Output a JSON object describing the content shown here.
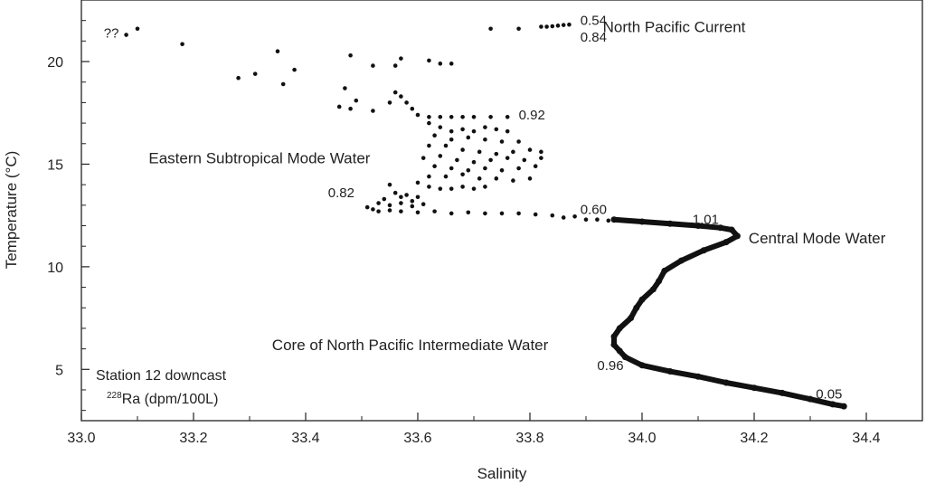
{
  "chart_data": {
    "type": "scatter",
    "title": "",
    "xlabel": "Salinity",
    "ylabel": "Temperature (°C)",
    "xlim": [
      33.0,
      34.5
    ],
    "ylim": [
      2.5,
      23.0
    ],
    "x_ticks": [
      "33.0",
      "33.2",
      "33.4",
      "33.6",
      "33.8",
      "34.0",
      "34.2",
      "34.4"
    ],
    "x_tick_values": [
      33.0,
      33.2,
      33.4,
      33.6,
      33.8,
      34.0,
      34.2,
      34.4
    ],
    "y_ticks": [
      "5",
      "10",
      "15",
      "20"
    ],
    "y_tick_values": [
      5,
      10,
      15,
      20
    ],
    "grid": false,
    "point_color": "#111111",
    "series": [
      {
        "points": [
          [
            33.08,
            21.3
          ],
          [
            33.1,
            21.6
          ],
          [
            33.18,
            20.85
          ],
          [
            33.28,
            19.2
          ],
          [
            33.31,
            19.4
          ],
          [
            33.35,
            20.5
          ],
          [
            33.36,
            18.9
          ],
          [
            33.38,
            19.6
          ],
          [
            33.48,
            20.3
          ],
          [
            33.52,
            19.8
          ],
          [
            33.56,
            19.8
          ],
          [
            33.57,
            20.15
          ],
          [
            33.62,
            20.05
          ],
          [
            33.64,
            19.9
          ],
          [
            33.66,
            19.9
          ],
          [
            33.47,
            18.7
          ],
          [
            33.46,
            17.8
          ],
          [
            33.49,
            18.1
          ],
          [
            33.48,
            17.7
          ],
          [
            33.52,
            17.6
          ],
          [
            33.55,
            18.0
          ],
          [
            33.56,
            18.5
          ],
          [
            33.57,
            18.3
          ],
          [
            33.58,
            18.0
          ],
          [
            33.59,
            17.7
          ],
          [
            33.6,
            17.4
          ],
          [
            33.62,
            17.3
          ],
          [
            33.64,
            17.3
          ],
          [
            33.66,
            17.3
          ],
          [
            33.68,
            17.3
          ],
          [
            33.7,
            17.3
          ],
          [
            33.73,
            17.3
          ],
          [
            33.76,
            17.3
          ],
          [
            33.62,
            17.0
          ],
          [
            33.64,
            16.8
          ],
          [
            33.66,
            16.6
          ],
          [
            33.68,
            16.7
          ],
          [
            33.7,
            16.6
          ],
          [
            33.72,
            16.8
          ],
          [
            33.74,
            16.7
          ],
          [
            33.76,
            16.6
          ],
          [
            33.63,
            16.4
          ],
          [
            33.66,
            16.2
          ],
          [
            33.69,
            16.3
          ],
          [
            33.72,
            16.2
          ],
          [
            33.75,
            16.1
          ],
          [
            33.78,
            16.1
          ],
          [
            33.62,
            15.9
          ],
          [
            33.65,
            15.9
          ],
          [
            33.68,
            15.7
          ],
          [
            33.71,
            15.6
          ],
          [
            33.74,
            15.5
          ],
          [
            33.77,
            15.6
          ],
          [
            33.8,
            15.7
          ],
          [
            33.82,
            15.6
          ],
          [
            33.61,
            15.3
          ],
          [
            33.64,
            15.4
          ],
          [
            33.67,
            15.2
          ],
          [
            33.7,
            15.1
          ],
          [
            33.73,
            15.2
          ],
          [
            33.76,
            15.3
          ],
          [
            33.79,
            15.2
          ],
          [
            33.82,
            15.3
          ],
          [
            33.63,
            14.9
          ],
          [
            33.66,
            14.8
          ],
          [
            33.69,
            14.7
          ],
          [
            33.72,
            14.8
          ],
          [
            33.75,
            14.7
          ],
          [
            33.78,
            14.8
          ],
          [
            33.81,
            14.9
          ],
          [
            33.62,
            14.4
          ],
          [
            33.65,
            14.4
          ],
          [
            33.68,
            14.5
          ],
          [
            33.71,
            14.3
          ],
          [
            33.74,
            14.3
          ],
          [
            33.77,
            14.2
          ],
          [
            33.8,
            14.3
          ],
          [
            33.6,
            14.1
          ],
          [
            33.62,
            13.9
          ],
          [
            33.64,
            13.8
          ],
          [
            33.66,
            13.8
          ],
          [
            33.68,
            13.9
          ],
          [
            33.7,
            13.8
          ],
          [
            33.72,
            13.9
          ],
          [
            33.55,
            14.0
          ],
          [
            33.56,
            13.6
          ],
          [
            33.57,
            13.4
          ],
          [
            33.58,
            13.5
          ],
          [
            33.59,
            13.2
          ],
          [
            33.6,
            13.4
          ],
          [
            33.54,
            13.3
          ],
          [
            33.53,
            13.1
          ],
          [
            33.55,
            13.0
          ],
          [
            33.57,
            13.1
          ],
          [
            33.59,
            12.95
          ],
          [
            33.61,
            13.05
          ],
          [
            33.51,
            12.9
          ],
          [
            33.52,
            12.8
          ],
          [
            33.53,
            12.7
          ],
          [
            33.55,
            12.75
          ],
          [
            33.57,
            12.7
          ],
          [
            33.6,
            12.65
          ],
          [
            33.63,
            12.7
          ],
          [
            33.66,
            12.6
          ],
          [
            33.69,
            12.65
          ],
          [
            33.72,
            12.6
          ],
          [
            33.75,
            12.6
          ],
          [
            33.78,
            12.6
          ],
          [
            33.81,
            12.55
          ],
          [
            33.84,
            12.5
          ],
          [
            33.86,
            12.4
          ],
          [
            33.88,
            12.45
          ],
          [
            33.9,
            12.3
          ],
          [
            33.92,
            12.3
          ],
          [
            33.94,
            12.25
          ],
          [
            33.73,
            21.6
          ],
          [
            33.78,
            21.6
          ],
          [
            33.82,
            21.7
          ],
          [
            33.83,
            21.7
          ],
          [
            33.84,
            21.72
          ],
          [
            33.85,
            21.75
          ],
          [
            33.86,
            21.78
          ],
          [
            33.87,
            21.8
          ]
        ]
      },
      {
        "points": [
          [
            33.95,
            12.3
          ],
          [
            34.0,
            12.2
          ],
          [
            34.05,
            12.1
          ],
          [
            34.1,
            12.0
          ],
          [
            34.14,
            11.9
          ],
          [
            34.16,
            11.8
          ],
          [
            34.17,
            11.5
          ],
          [
            34.15,
            11.2
          ],
          [
            34.11,
            10.8
          ],
          [
            34.07,
            10.3
          ],
          [
            34.04,
            9.8
          ],
          [
            34.03,
            9.3
          ],
          [
            34.02,
            8.9
          ],
          [
            34.0,
            8.4
          ],
          [
            33.99,
            8.0
          ],
          [
            33.98,
            7.5
          ],
          [
            33.96,
            7.0
          ],
          [
            33.95,
            6.6
          ],
          [
            33.95,
            6.2
          ],
          [
            33.96,
            5.9
          ],
          [
            33.97,
            5.6
          ],
          [
            34.0,
            5.2
          ],
          [
            34.05,
            4.9
          ],
          [
            34.1,
            4.65
          ],
          [
            34.15,
            4.35
          ],
          [
            34.2,
            4.1
          ],
          [
            34.25,
            3.85
          ],
          [
            34.3,
            3.55
          ],
          [
            34.34,
            3.3
          ],
          [
            34.36,
            3.2
          ]
        ]
      }
    ],
    "radium_labels": [
      {
        "text": "??",
        "x": 33.04,
        "y": 21.4
      },
      {
        "text": "0.54",
        "x": 33.89,
        "y": 22.0
      },
      {
        "text": "0.84",
        "x": 33.89,
        "y": 21.2
      },
      {
        "text": "0.92",
        "x": 33.78,
        "y": 17.4
      },
      {
        "text": "0.82",
        "x": 33.44,
        "y": 13.6
      },
      {
        "text": "0.60",
        "x": 33.89,
        "y": 12.8
      },
      {
        "text": "1.01",
        "x": 34.09,
        "y": 12.3
      },
      {
        "text": "0.96",
        "x": 33.92,
        "y": 5.2
      },
      {
        "text": "0.05",
        "x": 34.31,
        "y": 3.8
      }
    ],
    "annotations": [
      {
        "text": "North Pacific Current",
        "x": 33.93,
        "y": 21.7
      },
      {
        "text": "Eastern Subtropical Mode Water",
        "x": 33.12,
        "y": 15.3
      },
      {
        "text": "Central Mode Water",
        "x": 34.19,
        "y": 11.4
      },
      {
        "text": "Core of North Pacific Intermediate Water",
        "x": 33.34,
        "y": 6.2
      }
    ],
    "legend_text": {
      "line1": "Station 12 downcast",
      "line2_sup": "228",
      "line2_main": "Ra (dpm/100L)"
    }
  }
}
